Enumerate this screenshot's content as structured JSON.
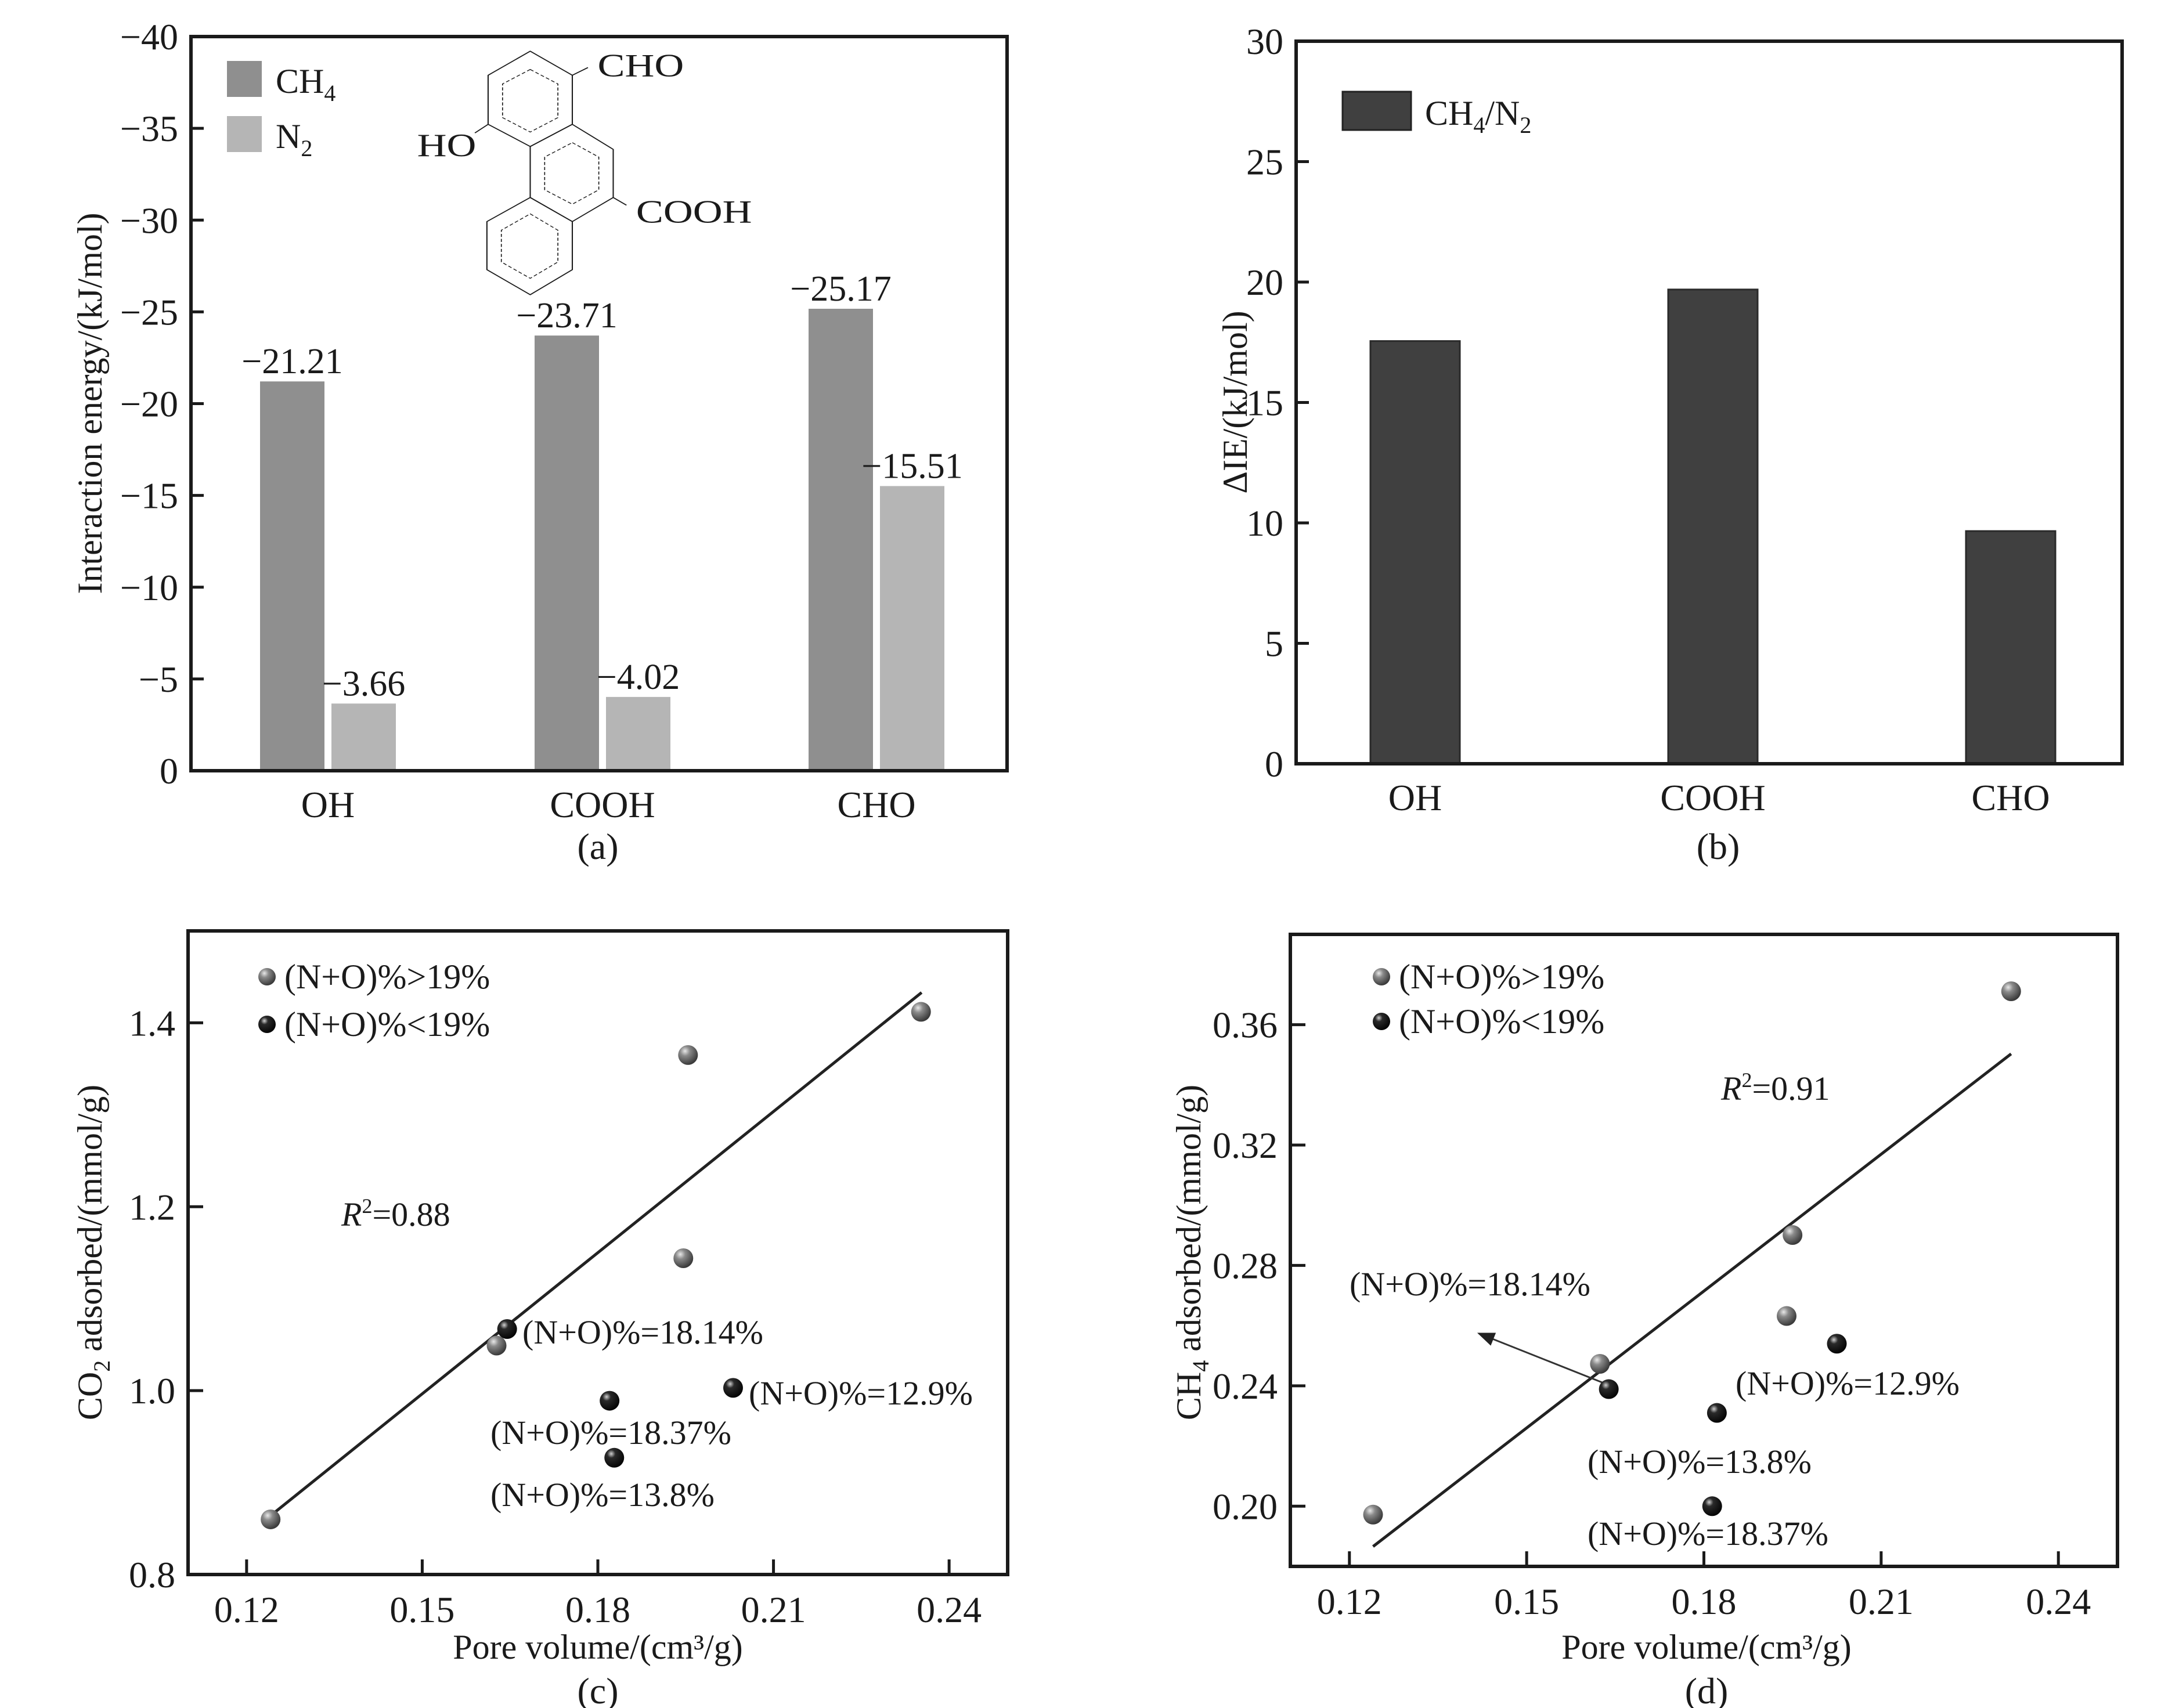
{
  "colors": {
    "ch4_bar": "#8f8f8f",
    "n2_bar": "#b5b5b5",
    "delta_bar": "#404040",
    "marker_high": "#7a7a7a",
    "marker_low": "#1e1e1e",
    "axis": "#1a1a1a"
  },
  "chart_data": [
    {
      "id": "a",
      "type": "bar",
      "panel_label": "(a)",
      "title": "",
      "xlabel": "",
      "ylabel": "Interaction energy/(kJ/mol)",
      "categories": [
        "OH",
        "COOH",
        "CHO"
      ],
      "series": [
        {
          "name": "CH4",
          "legend_main": "CH",
          "legend_sub": "4",
          "color_key": "ch4_bar",
          "values": [
            -21.21,
            -23.71,
            -25.17
          ],
          "labels": [
            "−21.21",
            "−23.71",
            "−25.17"
          ]
        },
        {
          "name": "N2",
          "legend_main": "N",
          "legend_sub": "2",
          "color_key": "n2_bar",
          "values": [
            -3.66,
            -4.02,
            -15.51
          ],
          "labels": [
            "−3.66",
            "−4.02",
            "−15.51"
          ]
        }
      ],
      "ylim": [
        0,
        -40
      ],
      "yticks": [
        0,
        -5,
        -10,
        -15,
        -20,
        -25,
        -30,
        -35,
        -40
      ],
      "ytick_labels": [
        "0",
        "−5",
        "−10",
        "−15",
        "−20",
        "−25",
        "−30",
        "−35",
        "−40"
      ],
      "grid": false,
      "legend_position": "top-left",
      "inset_structure": {
        "description": "hydroxy-formyl-carboxy phenanthrene",
        "substituents": [
          "CHO",
          "HO",
          "COOH"
        ]
      }
    },
    {
      "id": "b",
      "type": "bar",
      "panel_label": "(b)",
      "title": "",
      "xlabel": "",
      "ylabel": "ΔIE/(kJ/mol)",
      "categories": [
        "OH",
        "COOH",
        "CHO"
      ],
      "series": [
        {
          "name": "CH4/N2",
          "legend_parts": [
            "CH",
            "4",
            "/N",
            "2"
          ],
          "color_key": "delta_bar",
          "values": [
            17.55,
            19.69,
            9.66
          ]
        }
      ],
      "ylim": [
        0,
        30
      ],
      "yticks": [
        0,
        5,
        10,
        15,
        20,
        25,
        30
      ],
      "ytick_labels": [
        "0",
        "5",
        "10",
        "15",
        "20",
        "25",
        "30"
      ],
      "grid": false,
      "legend_position": "top-left"
    },
    {
      "id": "c",
      "type": "scatter",
      "panel_label": "(c)",
      "title": "",
      "xlabel": "Pore volume/(cm³/g)",
      "ylabel_main": "CO",
      "ylabel_sub": "2",
      "ylabel_rest": " adsorbed/(mmol/g)",
      "xlim": [
        0.11,
        0.25
      ],
      "ylim": [
        0.8,
        1.5
      ],
      "xticks": [
        0.12,
        0.15,
        0.18,
        0.21,
        0.24
      ],
      "xtick_labels": [
        "0.12",
        "0.15",
        "0.18",
        "0.21",
        "0.24"
      ],
      "yticks": [
        0.8,
        1.0,
        1.2,
        1.4
      ],
      "ytick_labels": [
        "0.8",
        "1.0",
        "1.2",
        "1.4"
      ],
      "grid": false,
      "legend_position": "top-left",
      "legend": [
        {
          "label": "(N+O)%>19%",
          "group": "high"
        },
        {
          "label": "(N+O)%<19%",
          "group": "low"
        }
      ],
      "points": [
        {
          "x": 0.1241,
          "y": 0.86,
          "group": "high"
        },
        {
          "x": 0.1627,
          "y": 1.049,
          "group": "high"
        },
        {
          "x": 0.1645,
          "y": 1.067,
          "group": "low",
          "annotation": "(N+O)%=18.14%"
        },
        {
          "x": 0.182,
          "y": 0.989,
          "group": "low",
          "annotation": "(N+O)%=18.37%"
        },
        {
          "x": 0.1828,
          "y": 0.927,
          "group": "low",
          "annotation": "(N+O)%=13.8%"
        },
        {
          "x": 0.1946,
          "y": 1.144,
          "group": "high"
        },
        {
          "x": 0.1954,
          "y": 1.365,
          "group": "high"
        },
        {
          "x": 0.2031,
          "y": 1.003,
          "group": "low",
          "annotation": "(N+O)%=12.9%"
        },
        {
          "x": 0.2352,
          "y": 1.412,
          "group": "high"
        }
      ],
      "fit_line": {
        "x": [
          0.1241,
          0.2353
        ],
        "y": [
          0.864,
          1.433
        ]
      },
      "r_squared_label": "R",
      "r_squared_value": "=0.88"
    },
    {
      "id": "d",
      "type": "scatter",
      "panel_label": "(d)",
      "title": "",
      "xlabel": "Pore volume/(cm³/g)",
      "ylabel_main": "CH",
      "ylabel_sub": "4",
      "ylabel_rest": " adsorbed/(mmol/g)",
      "xlim": [
        0.11,
        0.25
      ],
      "ylim": [
        0.18,
        0.39
      ],
      "xticks": [
        0.12,
        0.15,
        0.18,
        0.21,
        0.24
      ],
      "xtick_labels": [
        "0.12",
        "0.15",
        "0.18",
        "0.21",
        "0.24"
      ],
      "yticks": [
        0.2,
        0.24,
        0.28,
        0.32,
        0.36
      ],
      "ytick_labels": [
        "0.20",
        "0.24",
        "0.28",
        "0.32",
        "0.36"
      ],
      "grid": false,
      "legend_position": "top-left",
      "legend": [
        {
          "label": "(N+O)%>19%",
          "group": "high"
        },
        {
          "label": "(N+O)%<19%",
          "group": "low"
        }
      ],
      "points": [
        {
          "x": 0.124,
          "y": 0.1972,
          "group": "high"
        },
        {
          "x": 0.1624,
          "y": 0.2473,
          "group": "high"
        },
        {
          "x": 0.1639,
          "y": 0.2389,
          "group": "low",
          "annotation": "(N+O)%=18.14%"
        },
        {
          "x": 0.1822,
          "y": 0.231,
          "group": "low",
          "annotation": "(N+O)%=13.8%"
        },
        {
          "x": 0.1814,
          "y": 0.2,
          "group": "low",
          "annotation": "(N+O)%=18.37%"
        },
        {
          "x": 0.194,
          "y": 0.2632,
          "group": "high"
        },
        {
          "x": 0.195,
          "y": 0.2901,
          "group": "high"
        },
        {
          "x": 0.2025,
          "y": 0.254,
          "group": "low",
          "annotation": "(N+O)%=12.9%"
        },
        {
          "x": 0.232,
          "y": 0.3711,
          "group": "high"
        }
      ],
      "fit_line": {
        "x": [
          0.124,
          0.232
        ],
        "y": [
          0.1866,
          0.3503
        ]
      },
      "arrow": {
        "from": [
          0.1628,
          0.2411
        ],
        "to": [
          0.1419,
          0.2574
        ]
      },
      "r_squared_label": "R",
      "r_squared_value": "=0.91"
    }
  ]
}
